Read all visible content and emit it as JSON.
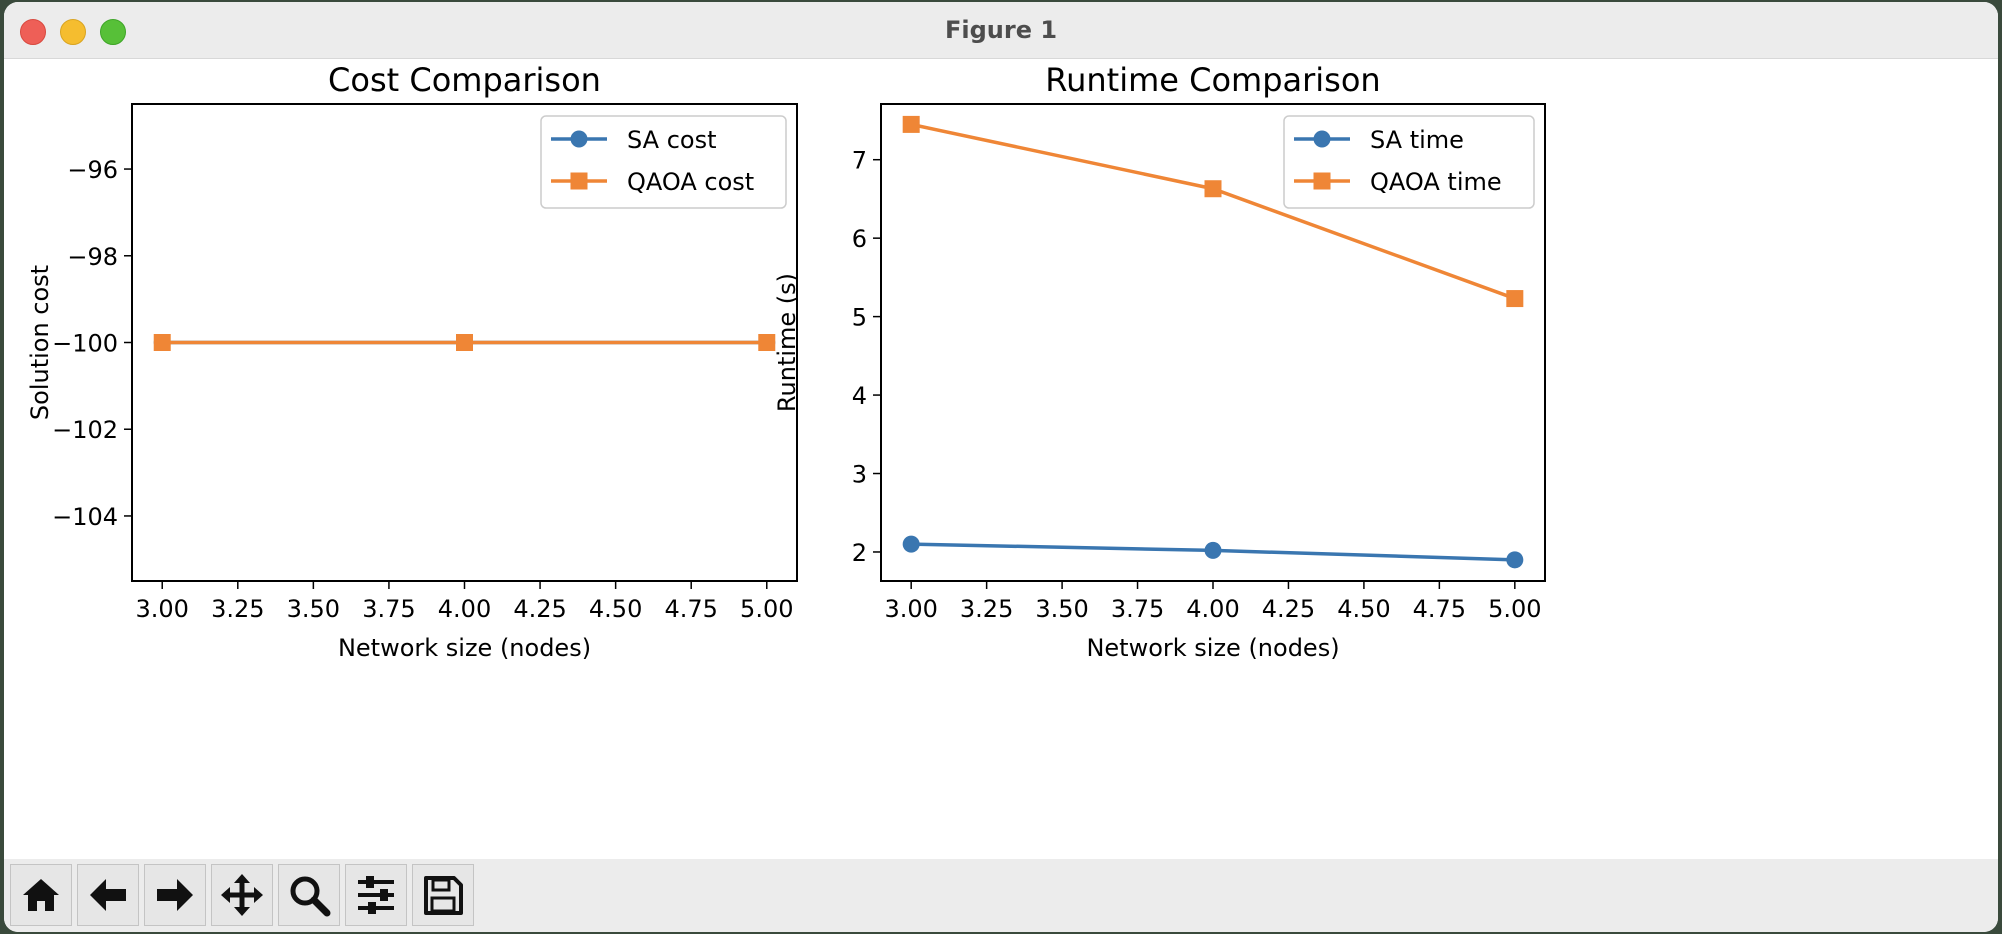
{
  "window": {
    "title": "Figure 1"
  },
  "toolbar": {
    "buttons": [
      {
        "icon": "home-icon"
      },
      {
        "icon": "back-arrow-icon"
      },
      {
        "icon": "forward-arrow-icon"
      },
      {
        "icon": "pan-icon"
      },
      {
        "icon": "zoom-icon"
      },
      {
        "icon": "configure-subplots-icon"
      },
      {
        "icon": "save-icon"
      }
    ]
  },
  "colors": {
    "sa": "#3a76b0",
    "qaoa": "#ef8636"
  },
  "chart_data": [
    {
      "type": "line",
      "title": "Cost Comparison",
      "xlabel": "Network size (nodes)",
      "ylabel": "Solution cost",
      "xlim": [
        2.9,
        5.1
      ],
      "ylim": [
        -105.5,
        -94.5
      ],
      "xticks": [
        3.0,
        3.25,
        3.5,
        3.75,
        4.0,
        4.25,
        4.5,
        4.75,
        5.0
      ],
      "xtick_labels": [
        "3.00",
        "3.25",
        "3.50",
        "3.75",
        "4.00",
        "4.25",
        "4.50",
        "4.75",
        "5.00"
      ],
      "yticks": [
        -96,
        -98,
        -100,
        -102,
        -104
      ],
      "ytick_labels": [
        "−96",
        "−98",
        "−100",
        "−102",
        "−104"
      ],
      "legend_position": "upper-right",
      "x": [
        3,
        4,
        5
      ],
      "series": [
        {
          "name": "SA cost",
          "marker": "circle",
          "color": "#3a76b0",
          "values": [
            -100,
            -100,
            -100
          ]
        },
        {
          "name": "QAOA cost",
          "marker": "square",
          "color": "#ef8636",
          "values": [
            -100,
            -100,
            -100
          ]
        }
      ]
    },
    {
      "type": "line",
      "title": "Runtime Comparison",
      "xlabel": "Network size (nodes)",
      "ylabel": "Runtime (s)",
      "xlim": [
        2.9,
        5.1
      ],
      "ylim": [
        1.63,
        7.71
      ],
      "xticks": [
        3.0,
        3.25,
        3.5,
        3.75,
        4.0,
        4.25,
        4.5,
        4.75,
        5.0
      ],
      "xtick_labels": [
        "3.00",
        "3.25",
        "3.50",
        "3.75",
        "4.00",
        "4.25",
        "4.50",
        "4.75",
        "5.00"
      ],
      "yticks": [
        2,
        3,
        4,
        5,
        6,
        7
      ],
      "ytick_labels": [
        "2",
        "3",
        "4",
        "5",
        "6",
        "7"
      ],
      "legend_position": "upper-right",
      "x": [
        3,
        4,
        5
      ],
      "series": [
        {
          "name": "SA time",
          "marker": "circle",
          "color": "#3a76b0",
          "values": [
            2.1,
            2.02,
            1.9
          ]
        },
        {
          "name": "QAOA time",
          "marker": "square",
          "color": "#ef8636",
          "values": [
            7.45,
            6.63,
            5.23
          ]
        }
      ]
    }
  ]
}
